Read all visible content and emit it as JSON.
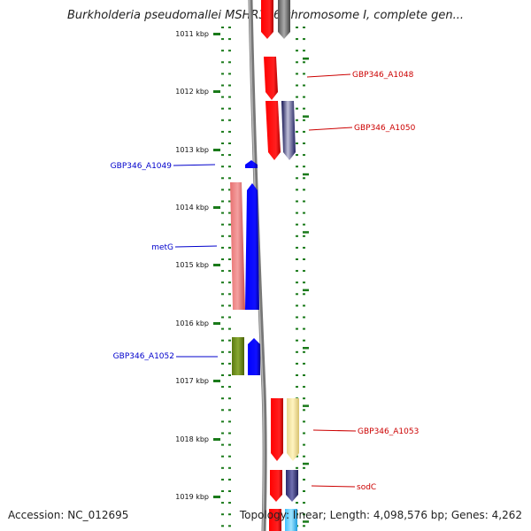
{
  "title": "Burkholderia pseudomallei MSHR346 chromosome I, complete gen...",
  "footer": {
    "accession": "Accession: NC_012695",
    "topology": "Topology: linear; Length: 4,098,576 bp; Genes: 4,262"
  },
  "ruler": {
    "labels": [
      "1011 kbp",
      "1012 kbp",
      "1013 kbp",
      "1014 kbp",
      "1015 kbp",
      "1016 kbp",
      "1017 kbp",
      "1018 kbp",
      "1019 kbp"
    ],
    "color": "#1a7a1a"
  },
  "strands": {
    "reverse_color": "#0000cc",
    "forward_color": "#cc0000"
  },
  "gene_labels": [
    {
      "name": "GBP346_A1048",
      "strand": "forward"
    },
    {
      "name": "GBP346_A1050",
      "strand": "forward"
    },
    {
      "name": "GBP346_A1049",
      "strand": "reverse"
    },
    {
      "name": "metG",
      "strand": "reverse"
    },
    {
      "name": "GBP346_A1052",
      "strand": "reverse"
    },
    {
      "name": "GBP346_A1053",
      "strand": "forward"
    },
    {
      "name": "sodC",
      "strand": "forward"
    }
  ]
}
